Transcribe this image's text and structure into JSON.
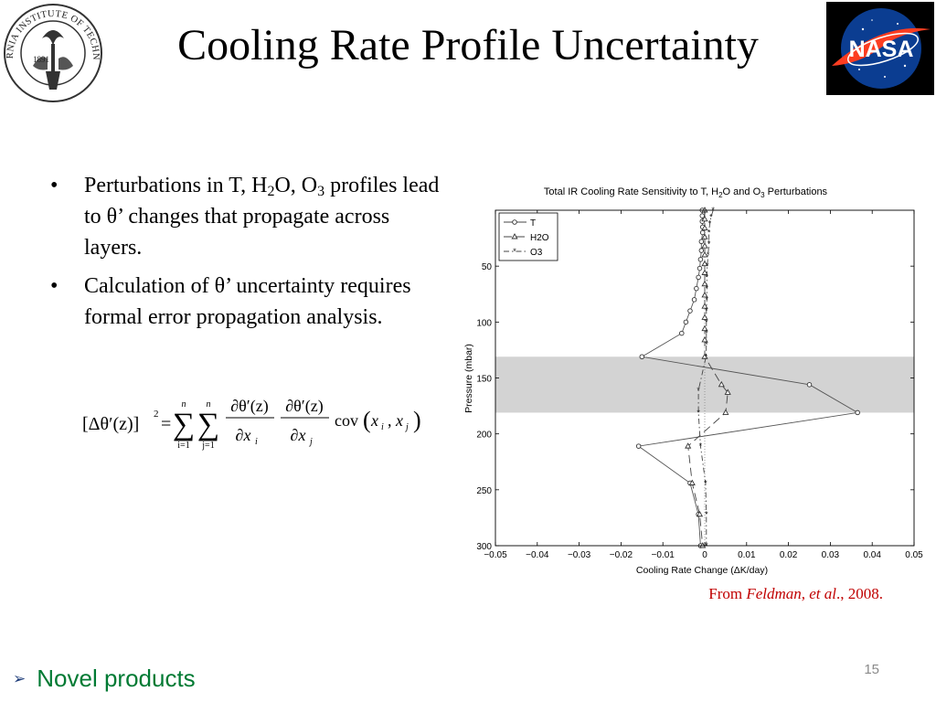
{
  "slide": {
    "title": "Cooling Rate Profile Uncertainty",
    "page_number": "15",
    "seal_logo": {
      "icon": "caltech-seal-icon",
      "text": "CALIFORNIA INSTITUTE OF TECHNOLOGY",
      "year": "1891"
    },
    "nasa_logo": {
      "icon": "nasa-meatball-icon",
      "text": "NASA"
    }
  },
  "bullets": [
    {
      "parts": [
        "Perturbations in T, H",
        "2",
        "O, O",
        "3",
        " profiles lead to θ’ changes that propagate across layers."
      ]
    },
    {
      "text": "Calculation of θ’ uncertainty requires formal error propagation analysis."
    }
  ],
  "formula": {
    "lhs": "[Δθ′(z)]",
    "lhs_exp": "2",
    "equals": "=",
    "sum1_top": "n",
    "sum1_bottom": "i=1",
    "sum2_top": "n",
    "sum2_bottom": "j=1",
    "frac1_num": "∂θ′(z)",
    "frac1_den": "∂x",
    "frac1_den_sub": "i",
    "frac2_num": "∂θ′(z)",
    "frac2_den": "∂x",
    "frac2_den_sub": "j",
    "cov": "cov",
    "cov_args_x1": "x",
    "cov_args_sub1": "i",
    "cov_args_x2": "x",
    "cov_args_sub2": "j",
    "cov_open": "(",
    "cov_close": ")",
    "cov_comma": ","
  },
  "citation": {
    "prefix": "From ",
    "authors": "Feldman, et al",
    "suffix": "., 2008."
  },
  "footer": {
    "text": "Novel products"
  },
  "colors": {
    "title": "#000000",
    "citation": "#c00000",
    "footer": "#007a33",
    "footer_arrow": "#1f3d7a",
    "band": "#d3d3d3",
    "page_number": "#8a8a8a"
  },
  "chart_data": {
    "type": "line",
    "title_parts": [
      "Total IR Cooling Rate Sensitivity to T, H",
      "2",
      "O and O",
      "3",
      " Perturbations"
    ],
    "xlabel": "Cooling Rate Change (ΔK/day)",
    "ylabel": "Pressure (mbar)",
    "xlim": [
      -0.05,
      0.05
    ],
    "ylim": [
      300,
      0
    ],
    "y_inverted": true,
    "xticks": [
      -0.05,
      -0.04,
      -0.03,
      -0.02,
      -0.01,
      0,
      0.01,
      0.02,
      0.03,
      0.04,
      0.05
    ],
    "xtick_labels": [
      "−0.05",
      "−0.04",
      "−0.03",
      "−0.02",
      "−0.01",
      "0",
      "0.01",
      "0.02",
      "0.03",
      "0.04",
      "0.05"
    ],
    "yticks": [
      50,
      100,
      150,
      200,
      250,
      300
    ],
    "ytick_labels": [
      "50",
      "100",
      "150",
      "200",
      "250",
      "300"
    ],
    "shaded_band": [
      131,
      181
    ],
    "grid": false,
    "legend_position": "top-left",
    "series": [
      {
        "name": "T",
        "marker": "circle",
        "dash": "",
        "points": [
          [
            -0.0006,
            0
          ],
          [
            -0.0006,
            5
          ],
          [
            -0.0006,
            10
          ],
          [
            -0.0005,
            15
          ],
          [
            -0.0005,
            20
          ],
          [
            -0.0008,
            28
          ],
          [
            -0.0008,
            36
          ],
          [
            -0.001,
            44
          ],
          [
            -0.0012,
            52
          ],
          [
            -0.0015,
            60
          ],
          [
            -0.002,
            70
          ],
          [
            -0.0025,
            80
          ],
          [
            -0.0035,
            90
          ],
          [
            -0.0045,
            100
          ],
          [
            -0.0055,
            110
          ],
          [
            -0.015,
            131
          ],
          [
            0.025,
            156
          ],
          [
            0.0365,
            181
          ],
          [
            -0.0158,
            211
          ],
          [
            -0.0035,
            244
          ],
          [
            -0.0015,
            272
          ],
          [
            -0.001,
            300
          ]
        ]
      },
      {
        "name": "H2O",
        "marker": "triangle",
        "dash": "9 5",
        "points": [
          [
            0,
            0
          ],
          [
            0,
            8
          ],
          [
            0,
            16
          ],
          [
            0,
            24
          ],
          [
            0,
            32
          ],
          [
            0,
            40
          ],
          [
            0,
            48
          ],
          [
            0,
            56
          ],
          [
            0,
            66
          ],
          [
            0,
            76
          ],
          [
            0,
            86
          ],
          [
            0,
            96
          ],
          [
            0,
            106
          ],
          [
            0,
            116
          ],
          [
            0,
            131
          ],
          [
            0.004,
            156
          ],
          [
            0.0055,
            163
          ],
          [
            0.005,
            181
          ],
          [
            -0.004,
            211
          ],
          [
            -0.003,
            244
          ],
          [
            -0.0012,
            272
          ],
          [
            -0.0005,
            300
          ]
        ]
      },
      {
        "name": "O3",
        "marker": "star",
        "dash": "6 3 1.5 3",
        "points": [
          [
            0.002,
            0
          ],
          [
            0.0015,
            6
          ],
          [
            0.0012,
            12
          ],
          [
            0.001,
            20
          ],
          [
            0.001,
            30
          ],
          [
            0.0008,
            40
          ],
          [
            0.0006,
            50
          ],
          [
            0.0005,
            60
          ],
          [
            0.0005,
            70
          ],
          [
            0.0005,
            80
          ],
          [
            0.0004,
            90
          ],
          [
            0.0004,
            100
          ],
          [
            0.0004,
            110
          ],
          [
            0.0004,
            120
          ],
          [
            0.0003,
            131
          ],
          [
            -0.0015,
            161
          ],
          [
            -0.0015,
            181
          ],
          [
            -0.001,
            211
          ],
          [
            0.0002,
            244
          ],
          [
            0.0004,
            272
          ],
          [
            0.0004,
            300
          ]
        ]
      }
    ]
  }
}
